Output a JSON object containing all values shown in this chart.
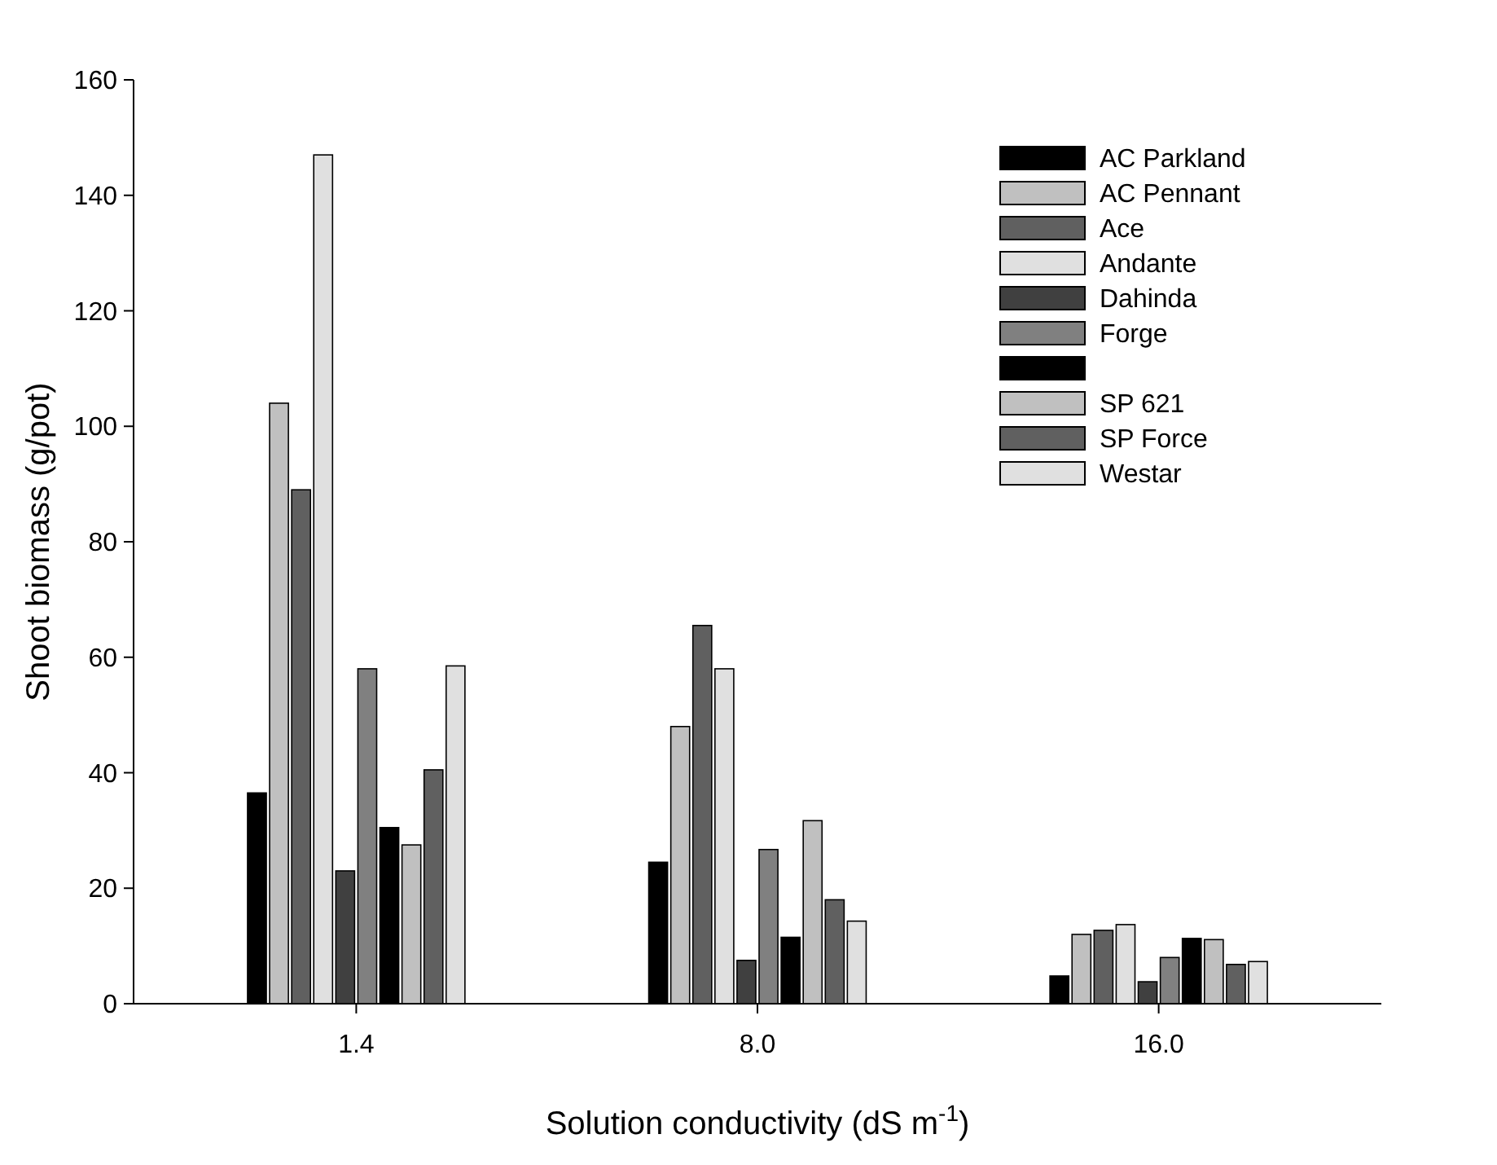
{
  "chart_data": {
    "type": "bar",
    "xlabel": "Solution conductivity (dS m$^{-1}$)",
    "ylabel": "Shoot biomass (g/pot)",
    "categories": [
      "1.4",
      "8.0",
      "16.0"
    ],
    "ylim": [
      0,
      160
    ],
    "yticks": [
      0,
      20,
      40,
      60,
      80,
      100,
      120,
      140,
      160
    ],
    "legend": "top right",
    "series": [
      {
        "name": "AC Parkland",
        "color": "#000000",
        "values": [
          36.5,
          24.5,
          4.8
        ]
      },
      {
        "name": "AC Pennant",
        "color": "#c0c0c0",
        "values": [
          104,
          48,
          12
        ]
      },
      {
        "name": "Ace",
        "color": "#606060",
        "values": [
          89,
          65.5,
          12.7
        ]
      },
      {
        "name": "Andante",
        "color": "#e0e0e0",
        "values": [
          147,
          58,
          13.7
        ]
      },
      {
        "name": "Dahinda",
        "color": "#404040",
        "values": [
          23,
          7.5,
          3.8
        ]
      },
      {
        "name": "Forge",
        "color": "#808080",
        "values": [
          58,
          26.7,
          8
        ]
      },
      {
        "color": "#000000",
        "values": [
          30.5,
          11.5,
          11.3
        ]
      },
      {
        "name": "SP 621",
        "color": "#c0c0c0",
        "values": [
          27.5,
          31.7,
          11.1
        ]
      },
      {
        "name": "SP Force",
        "color": "#606060",
        "values": [
          40.5,
          18,
          6.8
        ]
      },
      {
        "name": "Westar",
        "color": "#e0e0e0",
        "values": [
          58.5,
          14.3,
          7.3
        ]
      }
    ]
  }
}
